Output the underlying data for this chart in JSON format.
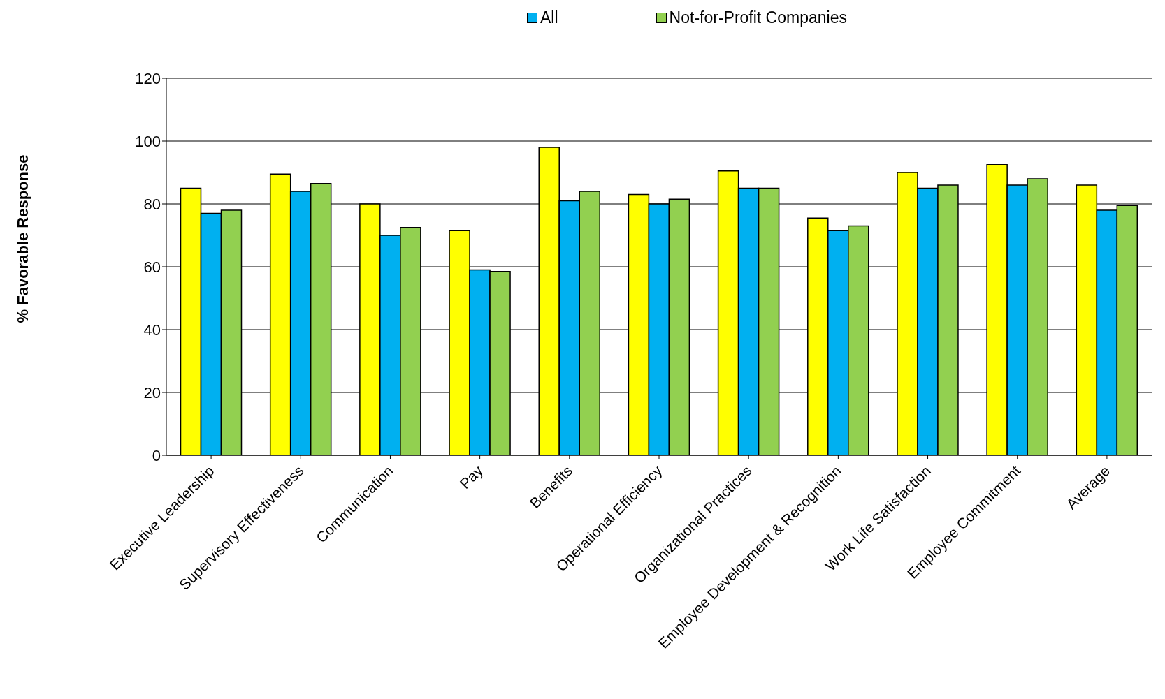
{
  "chart_data": {
    "type": "bar",
    "ylabel": "% Favorable Response",
    "categories": [
      "Executive Leadership",
      "Supervisory Effectiveness",
      "Communication",
      "Pay",
      "Benefits",
      "Operational Efficiency",
      "Organizational Practices",
      "Employee Development & Recognition",
      "Work Life Satisfaction",
      "Employee Commitment",
      "Average"
    ],
    "series": [
      {
        "color": "#ffff00",
        "values": [
          85,
          89.5,
          80,
          71.5,
          98,
          83,
          90.5,
          75.5,
          90,
          92.5,
          86
        ]
      },
      {
        "name": "All",
        "color": "#00b0f0",
        "values": [
          77,
          84,
          70,
          59,
          81,
          80,
          85,
          71.5,
          85,
          86,
          78
        ]
      },
      {
        "name": "Not-for-Profit Companies",
        "color": "#92d050",
        "values": [
          78,
          86.5,
          72.5,
          58.5,
          84,
          81.5,
          85,
          73,
          86,
          88,
          79.5
        ]
      }
    ],
    "ylim": [
      0,
      120
    ],
    "yticks": [
      0,
      20,
      40,
      60,
      80,
      100,
      120
    ],
    "grid": "y",
    "legend": "top"
  }
}
